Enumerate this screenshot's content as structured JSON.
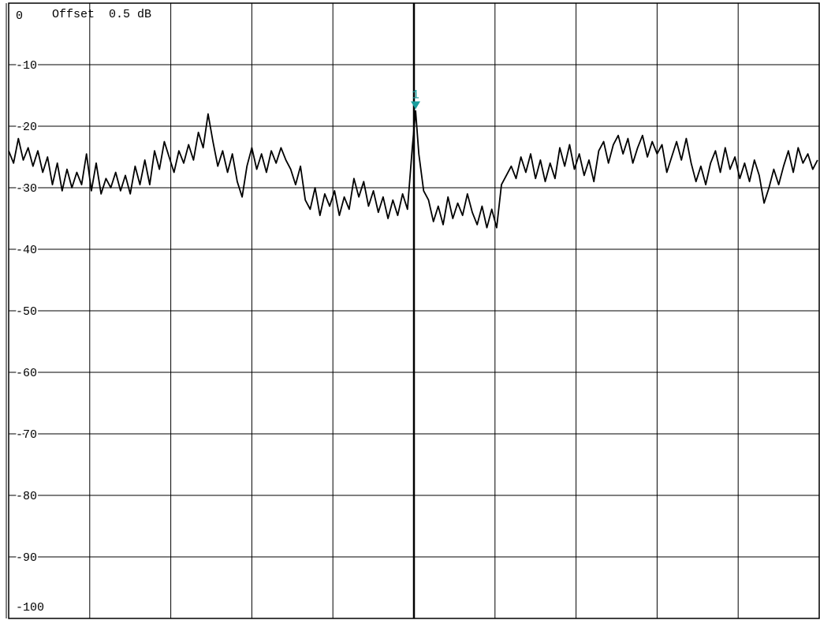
{
  "offset_label": "Offset  0.5 dB",
  "colors": {
    "trace": "#000000",
    "grid": "#000000",
    "marker": "#1a9e9e",
    "background": "#ffffff"
  },
  "chart_data": {
    "type": "line",
    "title": "",
    "xlabel": "",
    "ylabel": "",
    "grid": true,
    "xlim": [
      0,
      100
    ],
    "ylim": [
      -100,
      0
    ],
    "y_ticks": [
      0,
      -10,
      -20,
      -30,
      -40,
      -50,
      -60,
      -70,
      -80,
      -90,
      -100
    ],
    "y_tick_labels": [
      "0",
      "-10",
      "-20",
      "-30",
      "-40",
      "-50",
      "-60",
      "-70",
      "-80",
      "-90",
      "-100"
    ],
    "x_divisions": 10,
    "series": [
      {
        "values": [
          [
            0.0,
            -24.0
          ],
          [
            0.6,
            -26.0
          ],
          [
            1.2,
            -22.0
          ],
          [
            1.8,
            -25.5
          ],
          [
            2.4,
            -23.5
          ],
          [
            3.0,
            -26.5
          ],
          [
            3.6,
            -24.0
          ],
          [
            4.2,
            -27.5
          ],
          [
            4.8,
            -25.0
          ],
          [
            5.4,
            -29.5
          ],
          [
            6.0,
            -26.0
          ],
          [
            6.6,
            -30.5
          ],
          [
            7.2,
            -27.0
          ],
          [
            7.8,
            -30.0
          ],
          [
            8.4,
            -27.5
          ],
          [
            9.0,
            -29.5
          ],
          [
            9.6,
            -24.5
          ],
          [
            10.2,
            -30.5
          ],
          [
            10.8,
            -26.0
          ],
          [
            11.4,
            -31.0
          ],
          [
            12.0,
            -28.5
          ],
          [
            12.6,
            -30.0
          ],
          [
            13.2,
            -27.5
          ],
          [
            13.8,
            -30.5
          ],
          [
            14.4,
            -28.0
          ],
          [
            15.0,
            -31.0
          ],
          [
            15.6,
            -26.5
          ],
          [
            16.2,
            -29.5
          ],
          [
            16.8,
            -25.5
          ],
          [
            17.4,
            -29.5
          ],
          [
            18.0,
            -24.0
          ],
          [
            18.6,
            -27.0
          ],
          [
            19.2,
            -22.5
          ],
          [
            19.8,
            -25.0
          ],
          [
            20.4,
            -27.5
          ],
          [
            21.0,
            -24.0
          ],
          [
            21.6,
            -26.0
          ],
          [
            22.2,
            -23.0
          ],
          [
            22.8,
            -25.5
          ],
          [
            23.4,
            -21.0
          ],
          [
            24.0,
            -23.5
          ],
          [
            24.6,
            -18.0
          ],
          [
            25.2,
            -22.5
          ],
          [
            25.8,
            -26.5
          ],
          [
            26.4,
            -24.0
          ],
          [
            27.0,
            -27.5
          ],
          [
            27.6,
            -24.5
          ],
          [
            28.2,
            -29.0
          ],
          [
            28.8,
            -31.5
          ],
          [
            29.4,
            -26.5
          ],
          [
            30.0,
            -23.5
          ],
          [
            30.6,
            -27.0
          ],
          [
            31.2,
            -24.5
          ],
          [
            31.8,
            -27.5
          ],
          [
            32.4,
            -24.0
          ],
          [
            33.0,
            -26.0
          ],
          [
            33.6,
            -23.5
          ],
          [
            34.2,
            -25.5
          ],
          [
            34.8,
            -27.0
          ],
          [
            35.4,
            -29.5
          ],
          [
            36.0,
            -26.5
          ],
          [
            36.6,
            -32.0
          ],
          [
            37.2,
            -33.5
          ],
          [
            37.8,
            -30.0
          ],
          [
            38.4,
            -34.5
          ],
          [
            39.0,
            -31.0
          ],
          [
            39.6,
            -33.0
          ],
          [
            40.2,
            -30.5
          ],
          [
            40.8,
            -34.5
          ],
          [
            41.4,
            -31.5
          ],
          [
            42.0,
            -33.5
          ],
          [
            42.6,
            -28.5
          ],
          [
            43.2,
            -31.5
          ],
          [
            43.8,
            -29.0
          ],
          [
            44.4,
            -33.0
          ],
          [
            45.0,
            -30.5
          ],
          [
            45.6,
            -34.0
          ],
          [
            46.2,
            -31.5
          ],
          [
            46.8,
            -35.0
          ],
          [
            47.4,
            -32.0
          ],
          [
            48.0,
            -34.5
          ],
          [
            48.6,
            -31.0
          ],
          [
            49.2,
            -33.5
          ],
          [
            49.8,
            -23.5
          ],
          [
            50.2,
            -17.5
          ],
          [
            50.6,
            -24.5
          ],
          [
            51.2,
            -30.5
          ],
          [
            51.8,
            -32.0
          ],
          [
            52.4,
            -35.5
          ],
          [
            53.0,
            -33.0
          ],
          [
            53.6,
            -36.0
          ],
          [
            54.2,
            -31.5
          ],
          [
            54.8,
            -35.0
          ],
          [
            55.4,
            -32.5
          ],
          [
            56.0,
            -34.5
          ],
          [
            56.6,
            -31.0
          ],
          [
            57.2,
            -34.0
          ],
          [
            57.8,
            -36.0
          ],
          [
            58.4,
            -33.0
          ],
          [
            59.0,
            -36.5
          ],
          [
            59.6,
            -33.5
          ],
          [
            60.2,
            -36.5
          ],
          [
            60.8,
            -29.5
          ],
          [
            61.4,
            -28.0
          ],
          [
            62.0,
            -26.5
          ],
          [
            62.6,
            -28.5
          ],
          [
            63.2,
            -25.0
          ],
          [
            63.8,
            -27.5
          ],
          [
            64.4,
            -24.5
          ],
          [
            65.0,
            -28.5
          ],
          [
            65.6,
            -25.5
          ],
          [
            66.2,
            -29.0
          ],
          [
            66.8,
            -26.0
          ],
          [
            67.4,
            -28.5
          ],
          [
            68.0,
            -23.5
          ],
          [
            68.6,
            -26.5
          ],
          [
            69.2,
            -23.0
          ],
          [
            69.8,
            -27.0
          ],
          [
            70.4,
            -24.5
          ],
          [
            71.0,
            -28.0
          ],
          [
            71.6,
            -25.5
          ],
          [
            72.2,
            -29.0
          ],
          [
            72.8,
            -24.0
          ],
          [
            73.4,
            -22.5
          ],
          [
            74.0,
            -26.0
          ],
          [
            74.6,
            -23.0
          ],
          [
            75.2,
            -21.5
          ],
          [
            75.8,
            -24.5
          ],
          [
            76.4,
            -22.0
          ],
          [
            77.0,
            -26.0
          ],
          [
            77.6,
            -23.5
          ],
          [
            78.2,
            -21.5
          ],
          [
            78.8,
            -25.0
          ],
          [
            79.4,
            -22.5
          ],
          [
            80.0,
            -24.5
          ],
          [
            80.6,
            -23.0
          ],
          [
            81.2,
            -27.5
          ],
          [
            81.8,
            -25.0
          ],
          [
            82.4,
            -22.5
          ],
          [
            83.0,
            -25.5
          ],
          [
            83.6,
            -22.0
          ],
          [
            84.2,
            -26.0
          ],
          [
            84.8,
            -29.0
          ],
          [
            85.4,
            -26.5
          ],
          [
            86.0,
            -29.5
          ],
          [
            86.6,
            -26.0
          ],
          [
            87.2,
            -24.0
          ],
          [
            87.8,
            -27.5
          ],
          [
            88.4,
            -23.5
          ],
          [
            89.0,
            -27.0
          ],
          [
            89.6,
            -25.0
          ],
          [
            90.2,
            -28.5
          ],
          [
            90.8,
            -26.0
          ],
          [
            91.4,
            -29.0
          ],
          [
            92.0,
            -25.5
          ],
          [
            92.6,
            -28.0
          ],
          [
            93.2,
            -32.5
          ],
          [
            93.8,
            -30.0
          ],
          [
            94.4,
            -27.0
          ],
          [
            95.0,
            -29.5
          ],
          [
            95.6,
            -26.5
          ],
          [
            96.2,
            -24.0
          ],
          [
            96.8,
            -27.5
          ],
          [
            97.4,
            -23.5
          ],
          [
            98.0,
            -26.0
          ],
          [
            98.6,
            -24.5
          ],
          [
            99.2,
            -27.0
          ],
          [
            99.8,
            -25.5
          ]
        ]
      }
    ],
    "markers": [
      {
        "label": "1",
        "x": 50.2,
        "y": -17.5
      }
    ]
  }
}
